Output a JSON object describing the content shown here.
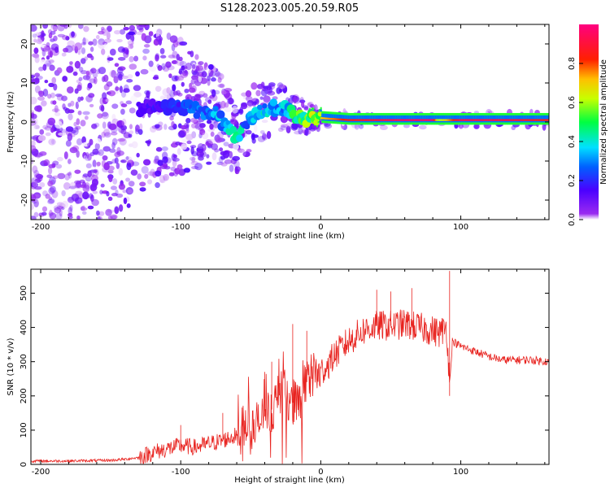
{
  "title": "S128.2023.005.20.59.R05",
  "colorbar": {
    "label": "Normalized spectral amplitude",
    "ticks": [
      "0.0",
      "0.2",
      "0.4",
      "0.6",
      "0.8"
    ],
    "tick_values": [
      0.0,
      0.2,
      0.4,
      0.6,
      0.8
    ],
    "range": [
      0,
      1
    ],
    "colormap": "hsv-reversed (purple-blue-cyan-green-yellow-red-magenta)"
  },
  "chart_data": [
    {
      "type": "heatmap",
      "name": "spectrogram",
      "xlabel": "Height of straight line (km)",
      "ylabel": "Frequency (Hz)",
      "xlim": [
        -207,
        163
      ],
      "ylim": [
        -25,
        25
      ],
      "xticks": [
        -200,
        -100,
        0,
        100
      ],
      "xtick_labels": [
        "-200",
        "-100",
        "0",
        "100"
      ],
      "yticks": [
        -20,
        -10,
        0,
        10,
        20
      ],
      "ytick_labels": [
        "-20",
        "-10",
        "0",
        "10",
        "20"
      ],
      "description_points": {
        "x": [
          -200,
          -150,
          -125,
          -100,
          -75,
          -60,
          -50,
          -40,
          -30,
          -20,
          -10,
          0,
          20,
          40,
          60,
          80,
          84,
          100,
          120,
          140,
          160
        ],
        "center_freq_hz": [
          0,
          0,
          4,
          4,
          2,
          -4,
          1,
          3,
          4,
          2,
          1,
          1,
          0.5,
          0.5,
          0.5,
          0.5,
          0.5,
          0.5,
          0.5,
          0.5,
          0.5
        ],
        "amplitude": [
          0.1,
          0.1,
          0.15,
          0.25,
          0.35,
          0.45,
          0.35,
          0.4,
          0.35,
          0.5,
          0.6,
          0.7,
          0.85,
          0.9,
          0.95,
          0.95,
          0.6,
          0.92,
          0.92,
          0.9,
          0.85
        ]
      }
    },
    {
      "type": "line",
      "name": "snr",
      "color": "#e8231f",
      "xlabel": "Height of straight line (km)",
      "ylabel": "SNR (10 * v/v)",
      "xlim": [
        -207,
        163
      ],
      "ylim": [
        0,
        570
      ],
      "xticks": [
        -200,
        -100,
        0,
        100
      ],
      "xtick_labels": [
        "-200",
        "-100",
        "0",
        "100"
      ],
      "yticks": [
        0,
        100,
        200,
        300,
        400,
        500
      ],
      "ytick_labels": [
        "0",
        "100",
        "200",
        "300",
        "400",
        "500"
      ],
      "x": [
        -207,
        -180,
        -150,
        -140,
        -130,
        -120,
        -110,
        -100,
        -90,
        -80,
        -70,
        -60,
        -55,
        -50,
        -45,
        -40,
        -35,
        -30,
        -25,
        -20,
        -15,
        -10,
        -5,
        0,
        5,
        10,
        15,
        20,
        30,
        40,
        50,
        60,
        70,
        80,
        85,
        90,
        92,
        94,
        100,
        110,
        120,
        130,
        140,
        150,
        163
      ],
      "y": [
        10,
        10,
        12,
        15,
        20,
        35,
        45,
        55,
        50,
        60,
        70,
        85,
        110,
        95,
        120,
        140,
        160,
        200,
        210,
        180,
        200,
        240,
        260,
        270,
        290,
        320,
        340,
        360,
        390,
        405,
        405,
        410,
        400,
        390,
        385,
        400,
        230,
        360,
        345,
        330,
        315,
        305,
        305,
        305,
        300
      ],
      "spikes": [
        {
          "x": -100,
          "y": 115
        },
        {
          "x": -70,
          "y": 150
        },
        {
          "x": -40,
          "y": 270
        },
        {
          "x": -35,
          "y": 300
        },
        {
          "x": -20,
          "y": 410
        },
        {
          "x": -10,
          "y": 390
        },
        {
          "x": 40,
          "y": 510
        },
        {
          "x": 50,
          "y": 505
        },
        {
          "x": 65,
          "y": 515
        },
        {
          "x": 92,
          "y": 565
        },
        {
          "x": 92,
          "y": 200
        }
      ]
    }
  ]
}
